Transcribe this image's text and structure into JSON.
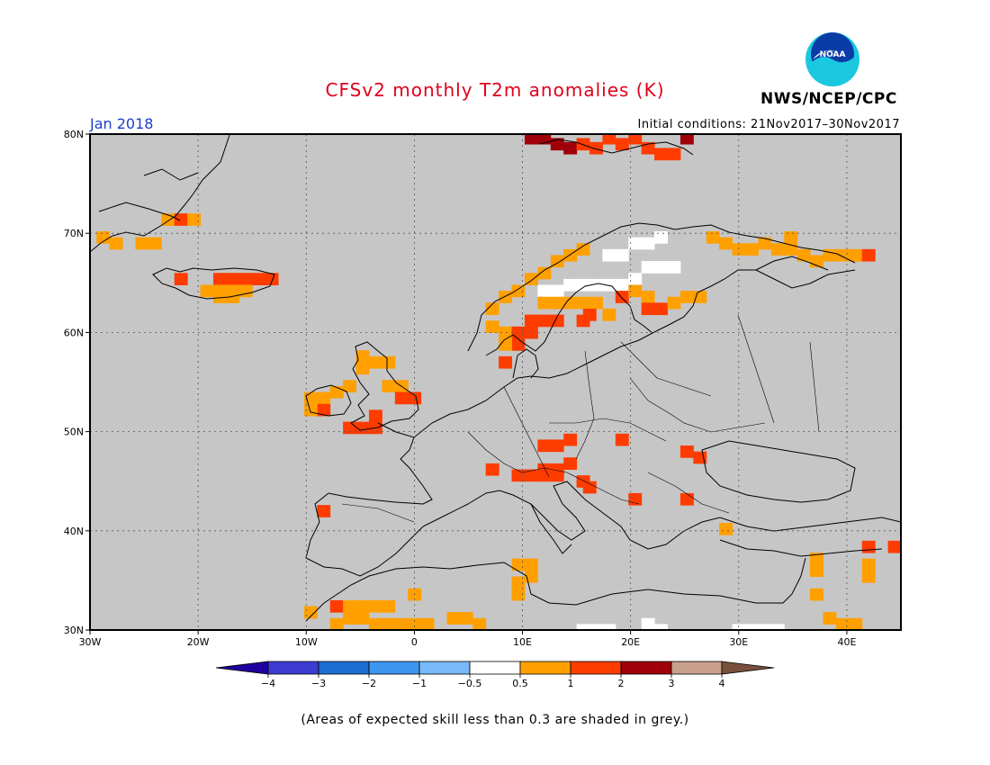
{
  "header": {
    "title": "CFSv2 monthly T2m anomalies (K)",
    "agency": "NWS/NCEP/CPC",
    "logo_text": "NOAA",
    "valid_month": "Jan 2018",
    "initial_conditions": "Initial conditions: 21Nov2017–30Nov2017"
  },
  "map": {
    "region": "Europe",
    "lon_range": [
      -30,
      45
    ],
    "lat_range": [
      30,
      80
    ],
    "gridlines": "dotted",
    "lat_ticks": [
      "80N",
      "70N",
      "60N",
      "50N",
      "40N",
      "30N"
    ],
    "lon_ticks": [
      "30W",
      "20W",
      "10W",
      "0",
      "10E",
      "20E",
      "30E",
      "40E"
    ],
    "background_color": "#c6c6c6",
    "anomaly_cells": [
      {
        "lon": 10.8,
        "lat": 79.6,
        "c": "#a0000a"
      },
      {
        "lon": 12.0,
        "lat": 79.6,
        "c": "#a0000a"
      },
      {
        "lon": 13.2,
        "lat": 79.0,
        "c": "#a0000a"
      },
      {
        "lon": 14.4,
        "lat": 78.6,
        "c": "#a0000a"
      },
      {
        "lon": 15.6,
        "lat": 79.0,
        "c": "#ff3c00"
      },
      {
        "lon": 16.8,
        "lat": 78.6,
        "c": "#ff3c00"
      },
      {
        "lon": 18.0,
        "lat": 79.6,
        "c": "#ff3c00"
      },
      {
        "lon": 19.2,
        "lat": 79.0,
        "c": "#ff3c00"
      },
      {
        "lon": 20.4,
        "lat": 79.6,
        "c": "#ff3c00"
      },
      {
        "lon": 21.6,
        "lat": 78.6,
        "c": "#ff3c00"
      },
      {
        "lon": 22.8,
        "lat": 78.0,
        "c": "#ff3c00"
      },
      {
        "lon": 24.0,
        "lat": 78.0,
        "c": "#ff3c00"
      },
      {
        "lon": 25.2,
        "lat": 79.6,
        "c": "#a0000a"
      },
      {
        "lon": -22.8,
        "lat": 71.4,
        "c": "#ffa000"
      },
      {
        "lon": -21.6,
        "lat": 71.4,
        "c": "#ff3c00"
      },
      {
        "lon": -20.4,
        "lat": 71.4,
        "c": "#ffa000"
      },
      {
        "lon": -28.8,
        "lat": 69.6,
        "c": "#ffa000"
      },
      {
        "lon": -27.6,
        "lat": 69.0,
        "c": "#ffa000"
      },
      {
        "lon": -25.2,
        "lat": 69.0,
        "c": "#ffa000"
      },
      {
        "lon": -24.0,
        "lat": 69.0,
        "c": "#ffa000"
      },
      {
        "lon": -21.6,
        "lat": 65.4,
        "c": "#ff3c00"
      },
      {
        "lon": -18.0,
        "lat": 65.4,
        "c": "#ff3c00"
      },
      {
        "lon": -16.8,
        "lat": 65.4,
        "c": "#ff3c00"
      },
      {
        "lon": -15.6,
        "lat": 65.4,
        "c": "#ff3c00"
      },
      {
        "lon": -14.4,
        "lat": 65.4,
        "c": "#ff3c00"
      },
      {
        "lon": -13.2,
        "lat": 65.4,
        "c": "#ff3c00"
      },
      {
        "lon": -19.2,
        "lat": 64.2,
        "c": "#ffa000"
      },
      {
        "lon": -18.0,
        "lat": 64.2,
        "c": "#ffa000"
      },
      {
        "lon": -16.8,
        "lat": 64.2,
        "c": "#ffa000"
      },
      {
        "lon": -15.6,
        "lat": 64.2,
        "c": "#ffa000"
      },
      {
        "lon": -18.0,
        "lat": 63.6,
        "c": "#ffa000"
      },
      {
        "lon": -16.8,
        "lat": 63.6,
        "c": "#ffa000"
      },
      {
        "lon": 7.2,
        "lat": 62.4,
        "c": "#ffa000"
      },
      {
        "lon": 8.4,
        "lat": 63.6,
        "c": "#ffa000"
      },
      {
        "lon": 9.6,
        "lat": 64.2,
        "c": "#ffa000"
      },
      {
        "lon": 10.8,
        "lat": 65.4,
        "c": "#ffa000"
      },
      {
        "lon": 12.0,
        "lat": 66.0,
        "c": "#ffa000"
      },
      {
        "lon": 13.2,
        "lat": 67.2,
        "c": "#ffa000"
      },
      {
        "lon": 14.4,
        "lat": 67.8,
        "c": "#ffa000"
      },
      {
        "lon": 15.6,
        "lat": 68.4,
        "c": "#ffa000"
      },
      {
        "lon": 7.2,
        "lat": 60.6,
        "c": "#ffa000"
      },
      {
        "lon": 8.4,
        "lat": 60.0,
        "c": "#ffa000"
      },
      {
        "lon": 9.6,
        "lat": 60.0,
        "c": "#ff3c00"
      },
      {
        "lon": 10.8,
        "lat": 61.2,
        "c": "#ff3c00"
      },
      {
        "lon": 12.0,
        "lat": 61.2,
        "c": "#ff3c00"
      },
      {
        "lon": 13.2,
        "lat": 61.2,
        "c": "#ff3c00"
      },
      {
        "lon": 10.8,
        "lat": 60.0,
        "c": "#ff3c00"
      },
      {
        "lon": 9.6,
        "lat": 58.8,
        "c": "#ff3c00"
      },
      {
        "lon": 8.4,
        "lat": 58.8,
        "c": "#ffa000"
      },
      {
        "lon": 12.0,
        "lat": 63.0,
        "c": "#ffa000"
      },
      {
        "lon": 13.2,
        "lat": 63.0,
        "c": "#ffa000"
      },
      {
        "lon": 14.4,
        "lat": 63.0,
        "c": "#ffa000"
      },
      {
        "lon": 15.6,
        "lat": 63.0,
        "c": "#ffa000"
      },
      {
        "lon": 16.8,
        "lat": 63.0,
        "c": "#ffa000"
      },
      {
        "lon": 16.2,
        "lat": 61.8,
        "c": "#ff3c00"
      },
      {
        "lon": 15.6,
        "lat": 61.2,
        "c": "#ff3c00"
      },
      {
        "lon": 18.0,
        "lat": 61.8,
        "c": "#ffa000"
      },
      {
        "lon": 19.2,
        "lat": 63.6,
        "c": "#ff3c00"
      },
      {
        "lon": 20.4,
        "lat": 64.2,
        "c": "#ffa000"
      },
      {
        "lon": 21.6,
        "lat": 63.6,
        "c": "#ffa000"
      },
      {
        "lon": 21.6,
        "lat": 62.4,
        "c": "#ff3c00"
      },
      {
        "lon": 22.8,
        "lat": 62.4,
        "c": "#ff3c00"
      },
      {
        "lon": 24.0,
        "lat": 63.0,
        "c": "#ffa000"
      },
      {
        "lon": 25.2,
        "lat": 63.6,
        "c": "#ffa000"
      },
      {
        "lon": 26.4,
        "lat": 63.6,
        "c": "#ffa000"
      },
      {
        "lon": 8.4,
        "lat": 57.0,
        "c": "#ff3c00"
      },
      {
        "lon": 27.6,
        "lat": 69.6,
        "c": "#ffa000"
      },
      {
        "lon": 28.8,
        "lat": 69.0,
        "c": "#ffa000"
      },
      {
        "lon": 30.0,
        "lat": 68.4,
        "c": "#ffa000"
      },
      {
        "lon": 31.2,
        "lat": 68.4,
        "c": "#ffa000"
      },
      {
        "lon": 32.4,
        "lat": 69.0,
        "c": "#ffa000"
      },
      {
        "lon": 33.6,
        "lat": 68.4,
        "c": "#ffa000"
      },
      {
        "lon": 34.8,
        "lat": 68.4,
        "c": "#ffa000"
      },
      {
        "lon": 36.0,
        "lat": 67.8,
        "c": "#ffa000"
      },
      {
        "lon": 37.2,
        "lat": 67.2,
        "c": "#ffa000"
      },
      {
        "lon": 38.4,
        "lat": 67.8,
        "c": "#ffa000"
      },
      {
        "lon": 39.6,
        "lat": 67.8,
        "c": "#ffa000"
      },
      {
        "lon": 40.8,
        "lat": 67.8,
        "c": "#ffa000"
      },
      {
        "lon": 42.0,
        "lat": 67.8,
        "c": "#ff3c00"
      },
      {
        "lon": 34.8,
        "lat": 69.6,
        "c": "#ffa000"
      },
      {
        "lon": -4.8,
        "lat": 57.6,
        "c": "#ffa000"
      },
      {
        "lon": -3.6,
        "lat": 57.0,
        "c": "#ffa000"
      },
      {
        "lon": -2.4,
        "lat": 57.0,
        "c": "#ffa000"
      },
      {
        "lon": -4.8,
        "lat": 56.4,
        "c": "#ffa000"
      },
      {
        "lon": -2.4,
        "lat": 54.6,
        "c": "#ffa000"
      },
      {
        "lon": -1.2,
        "lat": 54.6,
        "c": "#ffa000"
      },
      {
        "lon": -1.2,
        "lat": 53.4,
        "c": "#ff3c00"
      },
      {
        "lon": 0.0,
        "lat": 53.4,
        "c": "#ff3c00"
      },
      {
        "lon": -9.6,
        "lat": 53.4,
        "c": "#ffa000"
      },
      {
        "lon": -8.4,
        "lat": 53.4,
        "c": "#ffa000"
      },
      {
        "lon": -7.2,
        "lat": 54.0,
        "c": "#ffa000"
      },
      {
        "lon": -8.4,
        "lat": 52.2,
        "c": "#ff3c00"
      },
      {
        "lon": -9.6,
        "lat": 52.2,
        "c": "#ffa000"
      },
      {
        "lon": -6.0,
        "lat": 54.6,
        "c": "#ffa000"
      },
      {
        "lon": -6.0,
        "lat": 50.4,
        "c": "#ff3c00"
      },
      {
        "lon": -4.8,
        "lat": 50.4,
        "c": "#ff3c00"
      },
      {
        "lon": -3.6,
        "lat": 50.4,
        "c": "#ff3c00"
      },
      {
        "lon": -3.6,
        "lat": 51.6,
        "c": "#ff3c00"
      },
      {
        "lon": 12.0,
        "lat": 48.6,
        "c": "#ff3c00"
      },
      {
        "lon": 13.2,
        "lat": 48.6,
        "c": "#ff3c00"
      },
      {
        "lon": 14.4,
        "lat": 49.2,
        "c": "#ff3c00"
      },
      {
        "lon": 12.0,
        "lat": 46.2,
        "c": "#ff3c00"
      },
      {
        "lon": 13.2,
        "lat": 46.2,
        "c": "#ff3c00"
      },
      {
        "lon": 14.4,
        "lat": 46.8,
        "c": "#ff3c00"
      },
      {
        "lon": 10.8,
        "lat": 45.6,
        "c": "#ff3c00"
      },
      {
        "lon": 9.6,
        "lat": 45.6,
        "c": "#ff3c00"
      },
      {
        "lon": 12.0,
        "lat": 45.6,
        "c": "#ff3c00"
      },
      {
        "lon": 13.2,
        "lat": 45.6,
        "c": "#ff3c00"
      },
      {
        "lon": 15.6,
        "lat": 45.0,
        "c": "#ff3c00"
      },
      {
        "lon": 16.2,
        "lat": 44.4,
        "c": "#ff3c00"
      },
      {
        "lon": 7.2,
        "lat": 46.2,
        "c": "#ff3c00"
      },
      {
        "lon": 19.2,
        "lat": 49.2,
        "c": "#ff3c00"
      },
      {
        "lon": 25.2,
        "lat": 48.0,
        "c": "#ff3c00"
      },
      {
        "lon": 26.4,
        "lat": 47.4,
        "c": "#ff3c00"
      },
      {
        "lon": 25.2,
        "lat": 43.2,
        "c": "#ff3c00"
      },
      {
        "lon": 20.4,
        "lat": 43.2,
        "c": "#ff3c00"
      },
      {
        "lon": -8.4,
        "lat": 42.0,
        "c": "#ff3c00"
      },
      {
        "lon": 28.8,
        "lat": 40.2,
        "c": "#ffa000"
      },
      {
        "lon": 9.6,
        "lat": 36.6,
        "c": "#ffa000"
      },
      {
        "lon": 10.8,
        "lat": 36.6,
        "c": "#ffa000"
      },
      {
        "lon": 10.8,
        "lat": 35.4,
        "c": "#ffa000"
      },
      {
        "lon": 9.6,
        "lat": 34.8,
        "c": "#ffa000"
      },
      {
        "lon": 9.6,
        "lat": 33.6,
        "c": "#ffa000"
      },
      {
        "lon": -9.6,
        "lat": 31.8,
        "c": "#ffa000"
      },
      {
        "lon": -7.2,
        "lat": 32.4,
        "c": "#ff3c00"
      },
      {
        "lon": -6.0,
        "lat": 32.4,
        "c": "#ffa000"
      },
      {
        "lon": -4.8,
        "lat": 32.4,
        "c": "#ffa000"
      },
      {
        "lon": -3.6,
        "lat": 32.4,
        "c": "#ffa000"
      },
      {
        "lon": -2.4,
        "lat": 32.4,
        "c": "#ffa000"
      },
      {
        "lon": -6.0,
        "lat": 31.2,
        "c": "#ffa000"
      },
      {
        "lon": -4.8,
        "lat": 31.2,
        "c": "#ffa000"
      },
      {
        "lon": -3.6,
        "lat": 30.6,
        "c": "#ffa000"
      },
      {
        "lon": -2.4,
        "lat": 30.6,
        "c": "#ffa000"
      },
      {
        "lon": -1.2,
        "lat": 30.6,
        "c": "#ffa000"
      },
      {
        "lon": 0.0,
        "lat": 30.6,
        "c": "#ffa000"
      },
      {
        "lon": 1.2,
        "lat": 30.6,
        "c": "#ffa000"
      },
      {
        "lon": 0.0,
        "lat": 33.6,
        "c": "#ffa000"
      },
      {
        "lon": -7.2,
        "lat": 30.6,
        "c": "#ffa000"
      },
      {
        "lon": 3.6,
        "lat": 31.2,
        "c": "#ffa000"
      },
      {
        "lon": 4.8,
        "lat": 31.2,
        "c": "#ffa000"
      },
      {
        "lon": 6.0,
        "lat": 30.6,
        "c": "#ffa000"
      },
      {
        "lon": 37.2,
        "lat": 37.2,
        "c": "#ffa000"
      },
      {
        "lon": 37.2,
        "lat": 36.0,
        "c": "#ffa000"
      },
      {
        "lon": 37.2,
        "lat": 33.6,
        "c": "#ffa000"
      },
      {
        "lon": 38.4,
        "lat": 31.2,
        "c": "#ffa000"
      },
      {
        "lon": 39.6,
        "lat": 30.6,
        "c": "#ffa000"
      },
      {
        "lon": 40.8,
        "lat": 30.6,
        "c": "#ffa000"
      },
      {
        "lon": 42.0,
        "lat": 36.6,
        "c": "#ffa000"
      },
      {
        "lon": 42.0,
        "lat": 35.4,
        "c": "#ffa000"
      },
      {
        "lon": 42.0,
        "lat": 38.4,
        "c": "#ff3c00"
      },
      {
        "lon": 44.4,
        "lat": 38.4,
        "c": "#ff3c00"
      }
    ],
    "near_normal_cells": [
      {
        "lon": 14.4,
        "lat": 64.8
      },
      {
        "lon": 15.6,
        "lat": 64.8
      },
      {
        "lon": 16.8,
        "lat": 64.8
      },
      {
        "lon": 18.0,
        "lat": 64.8
      },
      {
        "lon": 19.2,
        "lat": 64.8
      },
      {
        "lon": 20.4,
        "lat": 65.4
      },
      {
        "lon": 21.6,
        "lat": 66.6
      },
      {
        "lon": 22.8,
        "lat": 66.6
      },
      {
        "lon": 24.0,
        "lat": 66.6
      },
      {
        "lon": 18.0,
        "lat": 67.8
      },
      {
        "lon": 19.2,
        "lat": 67.8
      },
      {
        "lon": 20.4,
        "lat": 69.0
      },
      {
        "lon": 21.6,
        "lat": 69.0
      },
      {
        "lon": 22.8,
        "lat": 69.6
      },
      {
        "lon": 13.2,
        "lat": 64.2
      },
      {
        "lon": 12.0,
        "lat": 64.2
      },
      {
        "lon": 18.0,
        "lat": 30.0
      },
      {
        "lon": 16.8,
        "lat": 30.0
      },
      {
        "lon": 15.6,
        "lat": 30.0
      },
      {
        "lon": 21.6,
        "lat": 30.6
      },
      {
        "lon": 22.8,
        "lat": 30.0
      },
      {
        "lon": 31.2,
        "lat": 30.0
      },
      {
        "lon": 32.4,
        "lat": 30.0
      },
      {
        "lon": 33.6,
        "lat": 30.0
      },
      {
        "lon": 30.0,
        "lat": 30.0
      }
    ]
  },
  "colorbar": {
    "colors": [
      "#1e00a0",
      "#3c3cd2",
      "#1e6ed2",
      "#3c96f0",
      "#78b9fa",
      "#ffffff",
      "#ffa000",
      "#ff3c00",
      "#a0000a",
      "#c8a08c",
      "#78503c"
    ],
    "labels": [
      "−4",
      "−3",
      "−2",
      "−1",
      "−0.5",
      "0.5",
      "1",
      "2",
      "3",
      "4"
    ]
  },
  "footnote": "(Areas of expected skill less than 0.3 are shaded in grey.)"
}
